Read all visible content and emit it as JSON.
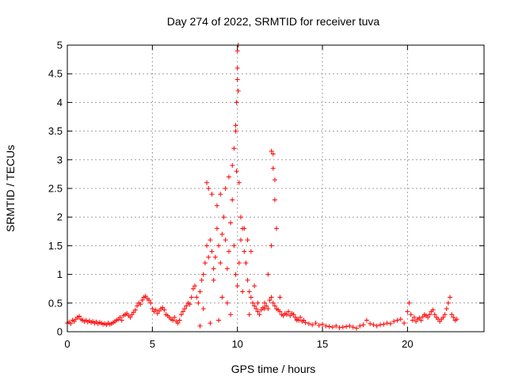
{
  "chart_data": {
    "type": "scatter",
    "title": "Day 274 of 2022, SRMTID for receiver tuva",
    "xlabel": "GPS time / hours",
    "ylabel": "SRMTID / TECUs",
    "xlim": [
      0,
      24.5
    ],
    "ylim": [
      0,
      5
    ],
    "xticks": [
      0,
      5,
      10,
      15,
      20
    ],
    "xtick_labels": [
      "0",
      "5",
      "10",
      "15",
      "20"
    ],
    "yticks": [
      0,
      0.5,
      1,
      1.5,
      2,
      2.5,
      3,
      3.5,
      4,
      4.5,
      5
    ],
    "ytick_labels": [
      "0",
      "0.5",
      "1",
      "1.5",
      "2",
      "2.5",
      "3",
      "3.5",
      "4",
      "4.5",
      "5"
    ],
    "grid": true,
    "marker": "+",
    "series": [
      {
        "name": "tuva",
        "color": "#ff0000",
        "x": [
          0.0,
          0.1,
          0.2,
          0.3,
          0.4,
          0.5,
          0.6,
          0.7,
          0.8,
          0.9,
          1.0,
          1.1,
          1.2,
          1.3,
          1.4,
          1.5,
          1.6,
          1.7,
          1.8,
          1.9,
          2.0,
          2.1,
          2.2,
          2.3,
          2.4,
          2.5,
          2.6,
          2.7,
          2.8,
          2.9,
          3.0,
          3.1,
          3.2,
          3.3,
          3.4,
          3.5,
          3.6,
          3.7,
          3.8,
          3.9,
          4.0,
          4.1,
          4.2,
          4.3,
          4.4,
          4.5,
          4.6,
          4.7,
          4.8,
          4.9,
          5.0,
          5.1,
          5.2,
          5.3,
          5.4,
          5.5,
          5.6,
          5.7,
          5.8,
          5.9,
          6.0,
          6.1,
          6.2,
          6.3,
          6.4,
          6.5,
          6.6,
          6.7,
          6.8,
          6.9,
          7.0,
          7.1,
          7.2,
          7.3,
          7.4,
          7.5,
          7.6,
          7.7,
          7.8,
          7.9,
          8.0,
          8.1,
          8.2,
          8.3,
          8.4,
          8.5,
          8.6,
          8.7,
          8.8,
          8.9,
          9.0,
          9.1,
          9.2,
          9.3,
          9.4,
          9.5,
          9.6,
          9.7,
          9.8,
          9.9,
          10.0,
          10.1,
          10.2,
          10.3,
          10.4,
          10.5,
          10.6,
          10.7,
          10.8,
          10.9,
          11.0,
          11.1,
          11.2,
          11.3,
          11.4,
          11.5,
          11.6,
          11.7,
          11.8,
          11.9,
          12.0,
          12.1,
          12.2,
          12.3,
          12.4,
          12.5,
          12.6,
          12.7,
          12.8,
          12.9,
          13.0,
          13.1,
          13.2,
          13.3,
          13.4,
          13.5,
          13.6,
          13.7,
          13.8,
          13.9,
          14.0,
          14.2,
          14.4,
          14.6,
          14.8,
          15.0,
          15.2,
          15.4,
          15.6,
          15.8,
          16.0,
          16.2,
          16.4,
          16.6,
          16.8,
          17.0,
          17.2,
          17.4,
          17.6,
          17.8,
          18.0,
          18.2,
          18.4,
          18.6,
          18.8,
          19.0,
          19.2,
          19.4,
          19.6,
          19.8,
          20.0,
          20.1,
          20.2,
          20.3,
          20.4,
          20.5,
          20.6,
          20.7,
          20.8,
          20.9,
          21.0,
          21.1,
          21.2,
          21.3,
          21.4,
          21.5,
          21.6,
          21.7,
          21.8,
          21.9,
          22.0,
          22.1,
          22.2,
          22.3,
          22.4,
          22.5,
          22.6,
          22.7,
          22.8,
          22.9,
          8.2,
          8.3,
          8.5,
          8.8,
          9.0,
          9.3,
          9.5,
          9.7,
          9.8,
          9.9,
          9.95,
          10.0,
          10.0,
          10.0,
          10.05,
          10.05,
          9.9,
          9.95,
          10.1,
          10.2,
          10.4,
          10.6,
          10.8,
          12.0,
          12.1,
          12.1,
          12.2,
          12.2,
          12.0,
          12.3,
          8.0,
          8.6,
          9.1,
          9.4,
          10.3,
          10.7,
          11.2,
          11.6,
          12.5,
          13.5,
          7.8,
          8.4,
          8.9,
          9.6,
          11.0,
          11.8
        ],
        "y": [
          0.15,
          0.17,
          0.14,
          0.2,
          0.18,
          0.22,
          0.25,
          0.27,
          0.22,
          0.2,
          0.18,
          0.2,
          0.17,
          0.19,
          0.16,
          0.18,
          0.15,
          0.17,
          0.14,
          0.16,
          0.15,
          0.13,
          0.14,
          0.12,
          0.15,
          0.13,
          0.14,
          0.16,
          0.18,
          0.2,
          0.22,
          0.25,
          0.2,
          0.28,
          0.3,
          0.32,
          0.28,
          0.25,
          0.3,
          0.34,
          0.38,
          0.45,
          0.5,
          0.48,
          0.55,
          0.6,
          0.62,
          0.58,
          0.55,
          0.5,
          0.4,
          0.35,
          0.38,
          0.32,
          0.36,
          0.4,
          0.42,
          0.38,
          0.3,
          0.28,
          0.25,
          0.22,
          0.2,
          0.25,
          0.18,
          0.15,
          0.2,
          0.3,
          0.35,
          0.4,
          0.45,
          0.5,
          0.48,
          0.6,
          0.75,
          0.8,
          0.6,
          0.5,
          0.7,
          0.9,
          1.0,
          1.2,
          1.5,
          1.3,
          1.6,
          1.4,
          1.1,
          1.3,
          1.8,
          1.5,
          1.2,
          1.7,
          2.0,
          1.6,
          1.1,
          1.4,
          1.9,
          2.3,
          1.5,
          1.0,
          0.8,
          1.2,
          1.6,
          1.8,
          1.4,
          1.2,
          0.9,
          0.7,
          0.6,
          0.5,
          0.45,
          0.4,
          0.35,
          0.3,
          0.38,
          0.42,
          0.5,
          0.45,
          0.4,
          0.55,
          0.6,
          0.5,
          0.45,
          0.4,
          0.38,
          0.35,
          0.3,
          0.28,
          0.32,
          0.3,
          0.35,
          0.28,
          0.32,
          0.3,
          0.25,
          0.22,
          0.2,
          0.25,
          0.18,
          0.2,
          0.16,
          0.14,
          0.12,
          0.15,
          0.11,
          0.13,
          0.1,
          0.09,
          0.08,
          0.1,
          0.07,
          0.08,
          0.09,
          0.1,
          0.08,
          0.06,
          0.1,
          0.12,
          0.2,
          0.14,
          0.12,
          0.1,
          0.12,
          0.13,
          0.15,
          0.14,
          0.18,
          0.2,
          0.22,
          0.15,
          0.35,
          0.5,
          0.3,
          0.2,
          0.25,
          0.18,
          0.22,
          0.24,
          0.2,
          0.26,
          0.3,
          0.28,
          0.25,
          0.3,
          0.35,
          0.38,
          0.3,
          0.25,
          0.22,
          0.18,
          0.22,
          0.25,
          0.3,
          0.4,
          0.5,
          0.6,
          0.3,
          0.25,
          0.2,
          0.22,
          2.6,
          2.5,
          2.4,
          2.2,
          2.4,
          2.5,
          2.7,
          2.9,
          3.2,
          3.6,
          4.0,
          4.4,
          4.6,
          4.9,
          5.0,
          4.2,
          3.5,
          2.8,
          2.6,
          2.0,
          1.8,
          1.6,
          1.4,
          3.15,
          3.1,
          2.85,
          2.65,
          2.3,
          1.5,
          1.8,
          0.4,
          0.9,
          0.6,
          0.5,
          0.7,
          0.3,
          0.5,
          0.4,
          0.6,
          0.2,
          0.1,
          0.15,
          0.2,
          0.3,
          0.8,
          1.0
        ]
      }
    ]
  }
}
